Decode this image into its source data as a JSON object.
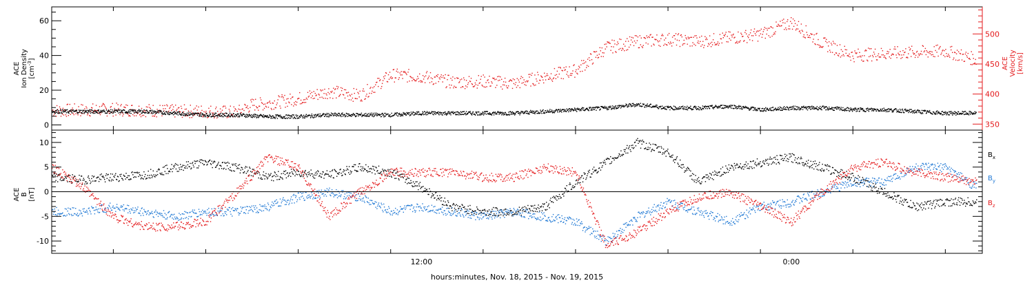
{
  "xlabel": "hours:minutes, Nov. 18, 2015 - Nov. 19, 2015",
  "x_ticks": [
    "12:00",
    "0:00"
  ],
  "colors": {
    "black": "#000000",
    "red": "#e41a1c",
    "blue": "#1f78d4"
  },
  "chart_data": [
    {
      "type": "scatter",
      "panel": "top",
      "ylabel": [
        "ACE",
        "Ion Density",
        "[cm^-3]"
      ],
      "ylim": [
        -3,
        68
      ],
      "y_ticks": [
        0,
        20,
        40,
        60
      ],
      "y2label": [
        "ACE",
        "Velocity",
        "[km/s]"
      ],
      "y2lim": [
        340,
        545
      ],
      "y2_ticks": [
        350,
        400,
        450,
        500
      ],
      "xlim_hours": [
        -5.0,
        25.2
      ],
      "series": [
        {
          "name": "Ion Density",
          "color": "black",
          "axis": "left",
          "x": [
            -5.0,
            -4,
            -3,
            -2,
            -1,
            0,
            1,
            2,
            3,
            4,
            5,
            6,
            7,
            8,
            9,
            10,
            11,
            12,
            13,
            14,
            15,
            16,
            17,
            18,
            19,
            20,
            21,
            22,
            23,
            24,
            25
          ],
          "y": [
            8,
            8,
            8,
            8,
            7,
            6,
            6,
            5,
            5,
            6,
            6,
            6,
            7,
            7,
            7,
            7,
            8,
            9,
            10,
            12,
            10,
            10,
            11,
            9,
            10,
            10,
            9,
            9,
            8,
            7,
            7
          ]
        },
        {
          "name": "Velocity",
          "color": "red",
          "axis": "right",
          "x": [
            -5.0,
            -4,
            -3,
            -2,
            -1,
            0,
            1,
            1.5,
            2,
            3,
            4,
            5,
            6,
            7,
            8,
            9,
            10,
            11,
            12,
            13,
            14,
            15,
            16,
            17,
            18,
            19,
            20,
            21,
            22,
            23,
            24,
            25
          ],
          "y": [
            373,
            374,
            375,
            374,
            372,
            372,
            370,
            383,
            385,
            393,
            405,
            398,
            432,
            430,
            420,
            422,
            418,
            430,
            440,
            478,
            488,
            492,
            488,
            494,
            500,
            520,
            485,
            465,
            468,
            470,
            472,
            458
          ]
        }
      ]
    },
    {
      "type": "scatter",
      "panel": "bottom",
      "ylabel": [
        "ACE",
        "B",
        "[nT]"
      ],
      "ylim": [
        -12.5,
        12.5
      ],
      "y_ticks": [
        -10,
        -5,
        0,
        5,
        10
      ],
      "xlim_hours": [
        -5.0,
        25.2
      ],
      "series": [
        {
          "name": "Bx",
          "color": "black",
          "x": [
            -5.0,
            -4,
            -3,
            -2,
            -1,
            0,
            1,
            2,
            3,
            4,
            5,
            6,
            7,
            8,
            9,
            10,
            11,
            12,
            13,
            14,
            15,
            16,
            17,
            18,
            19,
            20,
            21,
            22,
            23,
            24,
            25
          ],
          "y": [
            3,
            2.5,
            3,
            3.5,
            5,
            6,
            5,
            3,
            4,
            3.5,
            5,
            4,
            1,
            -3,
            -4,
            -4,
            -3,
            2,
            6,
            10,
            8,
            2,
            5,
            6,
            7,
            5,
            3,
            0,
            -3,
            -2,
            -2
          ]
        },
        {
          "name": "By",
          "color": "blue",
          "x": [
            -5.0,
            -4,
            -3,
            -2,
            -1,
            0,
            1,
            2,
            3,
            4,
            5,
            6,
            7,
            8,
            9,
            10,
            11,
            12,
            13,
            14,
            15,
            16,
            17,
            18,
            19,
            20,
            21,
            22,
            23,
            24,
            25
          ],
          "y": [
            -4,
            -4,
            -3,
            -4,
            -5,
            -4,
            -4,
            -3,
            -1,
            0,
            -1,
            -4,
            -3,
            -4,
            -5,
            -4,
            -5,
            -6,
            -10,
            -5,
            -2,
            -4,
            -6,
            -3,
            -2,
            0,
            2,
            2,
            5,
            5,
            1
          ]
        },
        {
          "name": "Bz",
          "color": "red",
          "x": [
            -5.0,
            -4,
            -3,
            -2,
            -1,
            0,
            1,
            2,
            3,
            4,
            5,
            6,
            7,
            8,
            9,
            10,
            11,
            12,
            13,
            14,
            15,
            16,
            17,
            18,
            19,
            20,
            21,
            22,
            23,
            24,
            25
          ],
          "y": [
            5,
            1,
            -5,
            -7,
            -7,
            -6,
            0,
            7,
            5,
            -5,
            0,
            4,
            4,
            4,
            3,
            3,
            5,
            4,
            -11,
            -8,
            -4,
            -1,
            0,
            -3,
            -6,
            0,
            5,
            6,
            4,
            3,
            2
          ]
        }
      ],
      "legend": [
        "Bx",
        "By",
        "Bz"
      ]
    }
  ]
}
